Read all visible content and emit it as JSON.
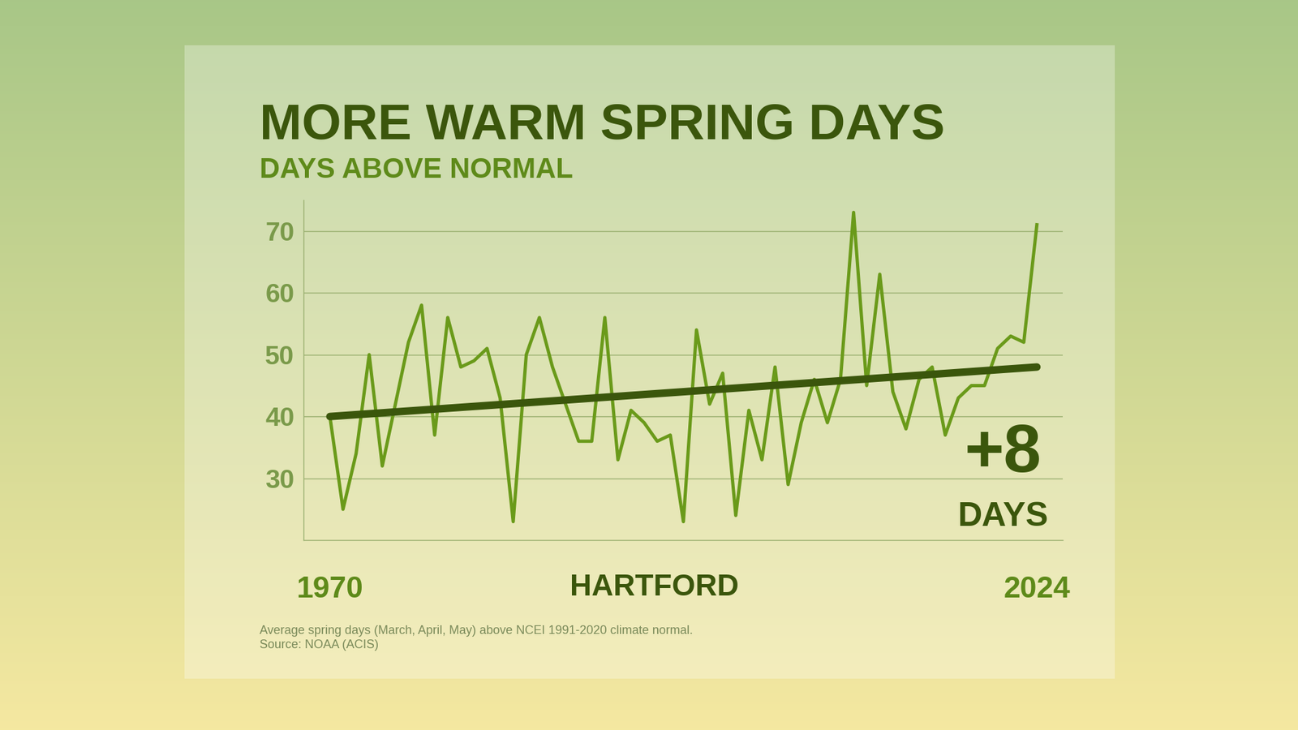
{
  "chart_data": {
    "type": "line",
    "title": "MORE WARM SPRING DAYS",
    "subtitle": "DAYS ABOVE NORMAL",
    "location": "HARTFORD",
    "x": [
      1970,
      1971,
      1972,
      1973,
      1974,
      1975,
      1976,
      1977,
      1978,
      1979,
      1980,
      1981,
      1982,
      1983,
      1984,
      1985,
      1986,
      1987,
      1988,
      1989,
      1990,
      1991,
      1992,
      1993,
      1994,
      1995,
      1996,
      1997,
      1998,
      1999,
      2000,
      2001,
      2002,
      2003,
      2004,
      2005,
      2006,
      2007,
      2008,
      2009,
      2010,
      2011,
      2012,
      2013,
      2014,
      2015,
      2016,
      2017,
      2018,
      2019,
      2020,
      2021,
      2022,
      2023,
      2024
    ],
    "values": [
      40,
      25,
      34,
      50,
      32,
      42,
      52,
      58,
      37,
      56,
      48,
      49,
      51,
      43,
      23,
      50,
      56,
      48,
      42,
      36,
      36,
      56,
      33,
      41,
      39,
      36,
      37,
      23,
      54,
      42,
      47,
      24,
      41,
      33,
      48,
      29,
      39,
      46,
      39,
      46,
      73,
      45,
      63,
      44,
      38,
      46,
      48,
      37,
      43,
      45,
      45,
      51,
      53,
      52,
      71
    ],
    "color": "#6a9a1a",
    "trend": {
      "x": [
        1970,
        2024
      ],
      "values": [
        40,
        48
      ],
      "color": "#3b560c"
    },
    "annotation": [
      "+8",
      "DAYS"
    ],
    "xlim": [
      1968,
      2026
    ],
    "xticks": [
      1970,
      2024
    ],
    "ylim": [
      20,
      75
    ],
    "yticks": [
      30,
      40,
      50,
      60,
      70
    ],
    "grid": true,
    "footnote": [
      "Average spring days (March, April, May) above NCEI 1991-2020 climate normal.",
      "Source: NOAA (ACIS)"
    ]
  }
}
